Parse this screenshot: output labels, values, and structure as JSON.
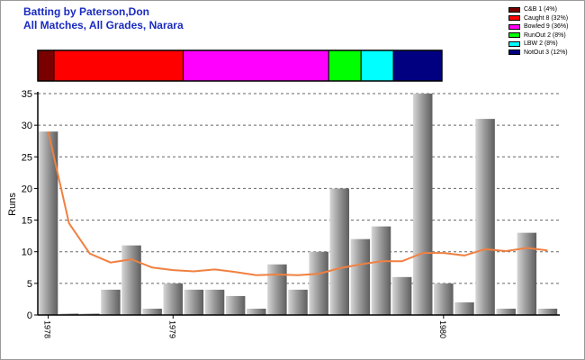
{
  "header": {
    "title_line1": "Batting by Paterson,Don",
    "title_line2": "All Matches, All Grades, Narara"
  },
  "legend": {
    "items": [
      {
        "label": "C&B 1 (4%)",
        "color": "#7a0000"
      },
      {
        "label": "Caught 8 (32%)",
        "color": "#ff0000"
      },
      {
        "label": "Bowled 9 (36%)",
        "color": "#ff00ff"
      },
      {
        "label": "RunOut 2 (8%)",
        "color": "#00ff00"
      },
      {
        "label": "LBW 2 (8%)",
        "color": "#00ffff"
      },
      {
        "label": "NotOut 3 (12%)",
        "color": "#000080"
      }
    ]
  },
  "chart_data": {
    "type": "bar",
    "ylabel": "Runs",
    "ylim": [
      0,
      35
    ],
    "yticks": [
      0,
      5,
      10,
      15,
      20,
      25,
      30,
      35
    ],
    "grid": true,
    "x_tick_labels": [
      {
        "label": "1978",
        "index": 0
      },
      {
        "label": "1979",
        "index": 6
      },
      {
        "label": "1980",
        "index": 19
      }
    ],
    "values": [
      29,
      0,
      0,
      4,
      11,
      1,
      5,
      4,
      4,
      3,
      1,
      8,
      4,
      10,
      20,
      12,
      14,
      6,
      35,
      5,
      2,
      31,
      1,
      13,
      1
    ],
    "average_line": [
      29,
      14.5,
      9.7,
      8.3,
      8.8,
      7.5,
      7.1,
      6.9,
      7.2,
      6.8,
      6.3,
      6.4,
      6.3,
      6.5,
      7.4,
      8.0,
      8.5,
      8.5,
      9.8,
      9.8,
      9.4,
      10.4,
      10.1,
      10.6,
      10.2
    ],
    "average_color": "#f08040",
    "dismissal_bar": [
      {
        "label": "C&B",
        "count": 1,
        "color": "#7a0000"
      },
      {
        "label": "Caught",
        "count": 8,
        "color": "#ff0000"
      },
      {
        "label": "Bowled",
        "count": 9,
        "color": "#ff00ff"
      },
      {
        "label": "RunOut",
        "count": 2,
        "color": "#00ff00"
      },
      {
        "label": "LBW",
        "count": 2,
        "color": "#00ffff"
      },
      {
        "label": "NotOut",
        "count": 3,
        "color": "#000080"
      }
    ]
  }
}
